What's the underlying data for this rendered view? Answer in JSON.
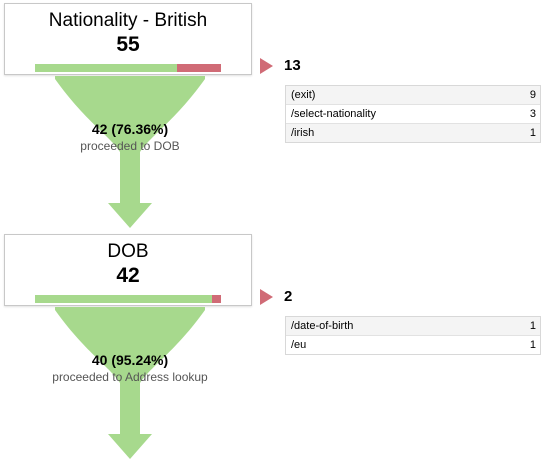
{
  "steps": [
    {
      "name": "Nationality - British",
      "count": "55",
      "bar_fraction": 0.7636,
      "proceeded_count": "42 (76.36%)",
      "proceeded_label": "proceeded to DOB",
      "exit_count": "13",
      "exits": [
        {
          "path": "(exit)",
          "count": "9"
        },
        {
          "path": "/select-nationality",
          "count": "3"
        },
        {
          "path": "/irish",
          "count": "1"
        }
      ]
    },
    {
      "name": "DOB",
      "count": "42",
      "bar_fraction": 0.9524,
      "proceeded_count": "40 (95.24%)",
      "proceeded_label": "proceeded to Address lookup",
      "exit_count": "2",
      "exits": [
        {
          "path": "/date-of-birth",
          "count": "1"
        },
        {
          "path": "/eu",
          "count": "1"
        }
      ]
    }
  ],
  "colors": {
    "proceed_green": "#a7d98d",
    "exit_red": "#d06b76"
  }
}
